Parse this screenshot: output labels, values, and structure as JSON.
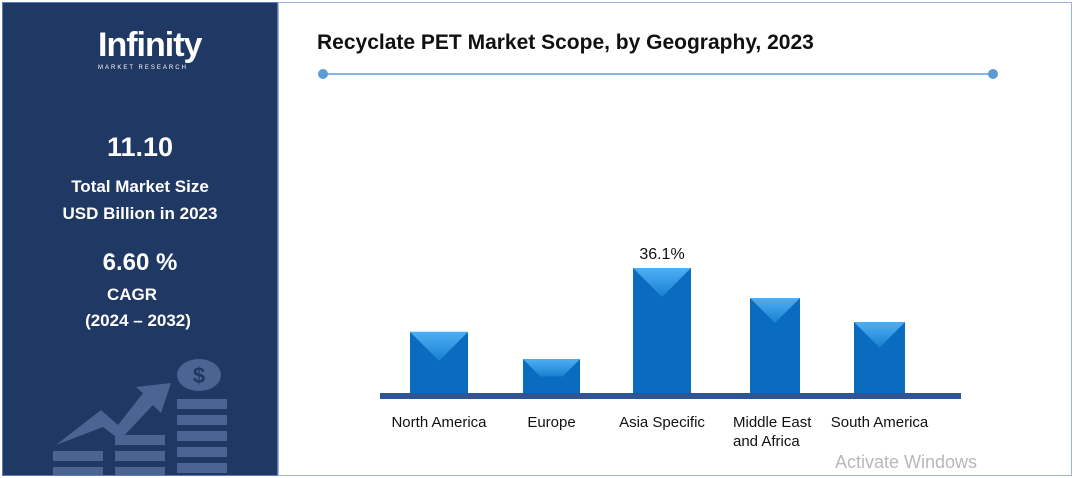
{
  "sidebar": {
    "logo_main": "Infinity",
    "logo_sub": "MARKET RESEARCH",
    "market_size": "11.10",
    "market_size_label1": "Total Market Size",
    "market_size_label2": "USD Billion in 2023",
    "cagr": "6.60 %",
    "cagr_label": "CAGR",
    "cagr_period": "(2024 – 2032)"
  },
  "watermark": "Activate Windows",
  "chart_data": {
    "type": "bar",
    "title": "Recyclate PET Market Scope, by Geography, 2023",
    "categories": [
      "North America",
      "Europe",
      "Asia Specific",
      "Middle East and Africa",
      "South America"
    ],
    "values": [
      17.8,
      10.0,
      36.1,
      27.5,
      20.6
    ],
    "data_labels": [
      "",
      "",
      "36.1%",
      "",
      ""
    ],
    "ylim": [
      0,
      40
    ],
    "grid": false,
    "colors": {
      "bar": "#0a6cbf",
      "axis": "#2f5597"
    }
  }
}
